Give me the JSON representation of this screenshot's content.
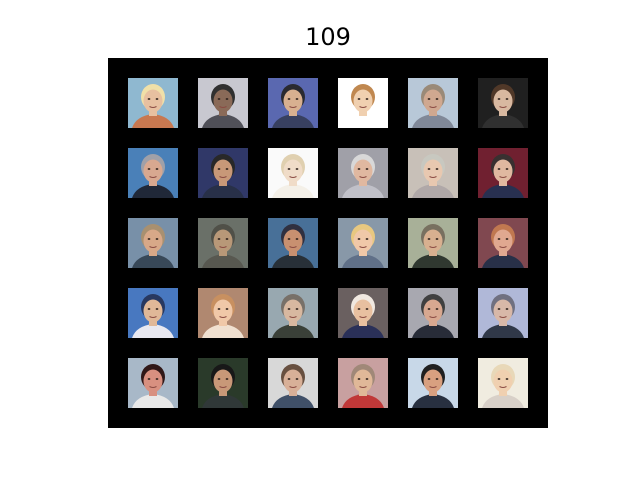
{
  "title": "109",
  "grid": {
    "rows": 5,
    "columns": 6,
    "panel_color": "#000000",
    "images": [
      {
        "bg": "#8fb8d0",
        "skin": "#e7c0a0",
        "hair": "#f0e0a8",
        "cloth": "#c87850"
      },
      {
        "bg": "#c8c8d0",
        "skin": "#8a6a58",
        "hair": "#303030",
        "cloth": "#505058"
      },
      {
        "bg": "#5a68b0",
        "skin": "#d8b090",
        "hair": "#2a2a30",
        "cloth": "#384060"
      },
      {
        "bg": "#ffffff",
        "skin": "#f0d0b0",
        "hair": "#c08850",
        "cloth": "#ffffff"
      },
      {
        "bg": "#b8c8d8",
        "skin": "#d0a890",
        "hair": "#9a8a78",
        "cloth": "#808898"
      },
      {
        "bg": "#202020",
        "skin": "#d8b8a0",
        "hair": "#503828",
        "cloth": "#303030"
      },
      {
        "bg": "#4a80b8",
        "skin": "#d8a890",
        "hair": "#a0a0a8",
        "cloth": "#202838"
      },
      {
        "bg": "#303868",
        "skin": "#c89878",
        "hair": "#282828",
        "cloth": "#283048"
      },
      {
        "bg": "#fafafa",
        "skin": "#f0dcc8",
        "hair": "#e0d0b0",
        "cloth": "#f4f0e8"
      },
      {
        "bg": "#a0a0a8",
        "skin": "#e0b8a0",
        "hair": "#d8d8d8",
        "cloth": "#c0c0c8"
      },
      {
        "bg": "#c8c0b8",
        "skin": "#e8c8b0",
        "hair": "#c8c8c0",
        "cloth": "#b0a8a8"
      },
      {
        "bg": "#702030",
        "skin": "#e0b8a0",
        "hair": "#383030",
        "cloth": "#283050"
      },
      {
        "bg": "#7890a8",
        "skin": "#d8a888",
        "hair": "#a89070",
        "cloth": "#384858"
      },
      {
        "bg": "#6a7068",
        "skin": "#b89878",
        "hair": "#505048",
        "cloth": "#585850"
      },
      {
        "bg": "#487098",
        "skin": "#c89070",
        "hair": "#303040",
        "cloth": "#283038"
      },
      {
        "bg": "#8898a8",
        "skin": "#f0c8a8",
        "hair": "#e8c880",
        "cloth": "#607088"
      },
      {
        "bg": "#a8b098",
        "skin": "#d8b090",
        "hair": "#787060",
        "cloth": "#303830"
      },
      {
        "bg": "#804850",
        "skin": "#e0a890",
        "hair": "#c07850",
        "cloth": "#283048"
      },
      {
        "bg": "#4878c0",
        "skin": "#e0b898",
        "hair": "#283860",
        "cloth": "#e8e8f0"
      },
      {
        "bg": "#b08870",
        "skin": "#f0c8a8",
        "hair": "#c89060",
        "cloth": "#f0e0d0"
      },
      {
        "bg": "#98a8b0",
        "skin": "#d8b8a0",
        "hair": "#787068",
        "cloth": "#3a4038"
      },
      {
        "bg": "#6a6060",
        "skin": "#e8c0a0",
        "hair": "#f0e8e0",
        "cloth": "#2a3058"
      },
      {
        "bg": "#a8a8b0",
        "skin": "#d8a890",
        "hair": "#404040",
        "cloth": "#282c38"
      },
      {
        "bg": "#b0b8d8",
        "skin": "#d8b8a8",
        "hair": "#707080",
        "cloth": "#303848"
      },
      {
        "bg": "#a8b8c8",
        "skin": "#d89080",
        "hair": "#301818",
        "cloth": "#e8e8e8"
      },
      {
        "bg": "#2a3a2a",
        "skin": "#c89878",
        "hair": "#181818",
        "cloth": "#303838"
      },
      {
        "bg": "#d8d8d8",
        "skin": "#d8b098",
        "hair": "#685040",
        "cloth": "#405068"
      },
      {
        "bg": "#c8a0a0",
        "skin": "#e0b898",
        "hair": "#a08878",
        "cloth": "#c03838"
      },
      {
        "bg": "#c8d8e8",
        "skin": "#d8a080",
        "hair": "#202020",
        "cloth": "#283040"
      },
      {
        "bg": "#f0ece0",
        "skin": "#f0d0b0",
        "hair": "#e8d8b8",
        "cloth": "#d8d0c8"
      }
    ]
  }
}
